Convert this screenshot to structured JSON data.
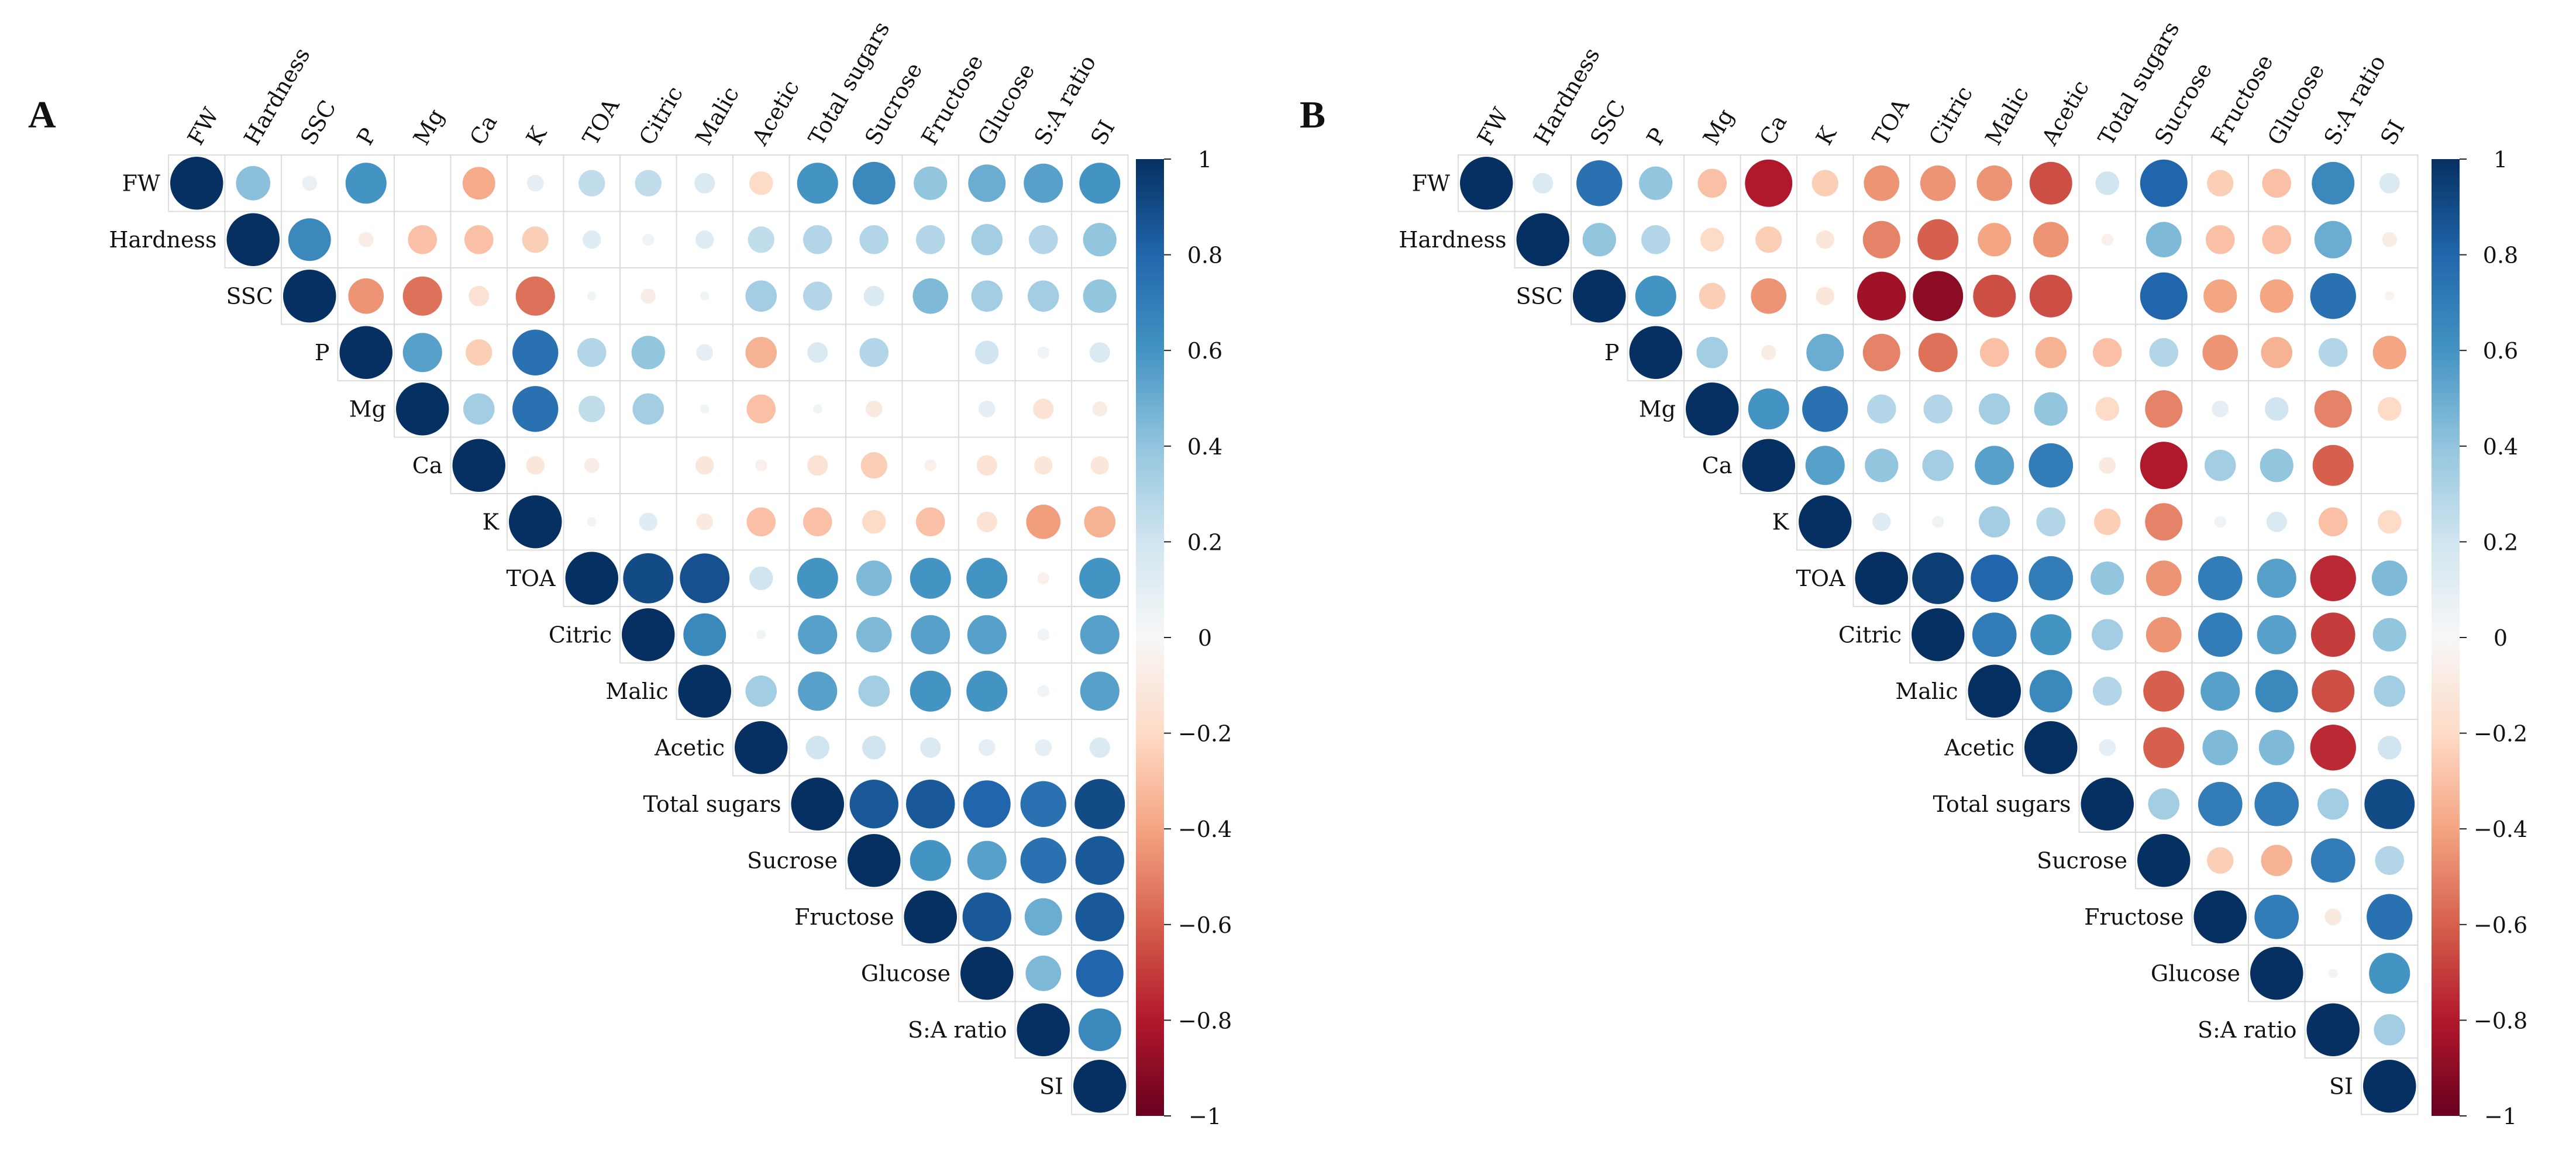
{
  "chart_data": [
    {
      "type": "heatmap",
      "subtype": "correlation-upper-triangle",
      "panel_label": "A",
      "variables": [
        "FW",
        "Hardness",
        "SSC",
        "P",
        "Mg",
        "Ca",
        "K",
        "TOA",
        "Citric",
        "Malic",
        "Acetic",
        "Total sugars",
        "Sucrose",
        "Fructose",
        "Glucose",
        "S:A ratio",
        "SI"
      ],
      "matrix": [
        [
          1,
          0.42,
          0.08,
          0.6,
          0,
          -0.38,
          0.1,
          0.25,
          0.25,
          0.15,
          -0.2,
          0.6,
          0.65,
          0.4,
          0.5,
          0.55,
          0.6
        ],
        [
          null,
          1,
          0.65,
          -0.08,
          -0.3,
          -0.3,
          -0.25,
          0.12,
          0.05,
          0.12,
          0.25,
          0.3,
          0.3,
          0.3,
          0.35,
          0.3,
          0.4
        ],
        [
          null,
          null,
          1,
          -0.45,
          -0.55,
          -0.15,
          -0.55,
          0.03,
          -0.08,
          0.03,
          0.35,
          0.3,
          0.15,
          0.45,
          0.35,
          0.35,
          0.4
        ],
        [
          null,
          null,
          null,
          1,
          0.55,
          -0.25,
          0.75,
          0.3,
          0.4,
          0.1,
          -0.35,
          0.15,
          0.3,
          0,
          0.2,
          0.05,
          0.15
        ],
        [
          null,
          null,
          null,
          null,
          1,
          0.35,
          0.75,
          0.25,
          0.35,
          0.03,
          -0.3,
          0.03,
          -0.1,
          0,
          0.1,
          -0.15,
          -0.08
        ],
        [
          null,
          null,
          null,
          null,
          null,
          1,
          -0.12,
          -0.08,
          0,
          -0.12,
          -0.05,
          -0.15,
          -0.25,
          -0.05,
          -0.15,
          -0.12,
          -0.12
        ],
        [
          null,
          null,
          null,
          null,
          null,
          null,
          1,
          0.03,
          0.12,
          -0.1,
          -0.3,
          -0.3,
          -0.2,
          -0.3,
          -0.15,
          -0.42,
          -0.35
        ],
        [
          null,
          null,
          null,
          null,
          null,
          null,
          null,
          1,
          0.9,
          0.88,
          0.2,
          0.6,
          0.45,
          0.6,
          0.6,
          -0.05,
          0.6
        ],
        [
          null,
          null,
          null,
          null,
          null,
          null,
          null,
          null,
          1,
          0.65,
          0.03,
          0.55,
          0.45,
          0.55,
          0.55,
          0.05,
          0.55
        ],
        [
          null,
          null,
          null,
          null,
          null,
          null,
          null,
          null,
          null,
          1,
          0.35,
          0.55,
          0.35,
          0.6,
          0.6,
          0.05,
          0.55
        ],
        [
          null,
          null,
          null,
          null,
          null,
          null,
          null,
          null,
          null,
          null,
          1,
          0.2,
          0.2,
          0.15,
          0.1,
          0.1,
          0.15
        ],
        [
          null,
          null,
          null,
          null,
          null,
          null,
          null,
          null,
          null,
          null,
          null,
          1,
          0.85,
          0.85,
          0.8,
          0.75,
          0.9
        ],
        [
          null,
          null,
          null,
          null,
          null,
          null,
          null,
          null,
          null,
          null,
          null,
          null,
          1,
          0.6,
          0.55,
          0.75,
          0.85
        ],
        [
          null,
          null,
          null,
          null,
          null,
          null,
          null,
          null,
          null,
          null,
          null,
          null,
          null,
          1,
          0.85,
          0.5,
          0.85
        ],
        [
          null,
          null,
          null,
          null,
          null,
          null,
          null,
          null,
          null,
          null,
          null,
          null,
          null,
          null,
          1,
          0.45,
          0.8
        ],
        [
          null,
          null,
          null,
          null,
          null,
          null,
          null,
          null,
          null,
          null,
          null,
          null,
          null,
          null,
          null,
          1,
          0.65
        ],
        [
          null,
          null,
          null,
          null,
          null,
          null,
          null,
          null,
          null,
          null,
          null,
          null,
          null,
          null,
          null,
          null,
          1
        ]
      ],
      "colorbar": {
        "ticks": [
          "1",
          "0.8",
          "0.6",
          "0.4",
          "0.2",
          "0",
          "−0.2",
          "−0.4",
          "−0.6",
          "−0.8",
          "−1"
        ],
        "range": [
          -1,
          1
        ]
      }
    },
    {
      "type": "heatmap",
      "subtype": "correlation-upper-triangle",
      "panel_label": "B",
      "variables": [
        "FW",
        "Hardness",
        "SSC",
        "P",
        "Mg",
        "Ca",
        "K",
        "TOA",
        "Citric",
        "Malic",
        "Acetic",
        "Total sugars",
        "Sucrose",
        "Fructose",
        "Glucose",
        "S:A ratio",
        "SI"
      ],
      "matrix": [
        [
          1,
          0.15,
          0.75,
          0.4,
          -0.3,
          -0.8,
          -0.25,
          -0.45,
          -0.45,
          -0.45,
          -0.65,
          0.2,
          0.8,
          -0.25,
          -0.3,
          0.65,
          0.15
        ],
        [
          null,
          1,
          0.4,
          0.3,
          -0.2,
          -0.25,
          -0.12,
          -0.5,
          -0.6,
          -0.4,
          -0.45,
          -0.05,
          0.45,
          -0.3,
          -0.3,
          0.5,
          -0.08
        ],
        [
          null,
          null,
          1,
          0.6,
          -0.25,
          -0.45,
          -0.12,
          -0.85,
          -0.9,
          -0.65,
          -0.65,
          0,
          0.8,
          -0.4,
          -0.4,
          0.75,
          -0.03
        ],
        [
          null,
          null,
          null,
          1,
          0.35,
          -0.08,
          0.5,
          -0.5,
          -0.55,
          -0.3,
          -0.35,
          -0.3,
          0.3,
          -0.45,
          -0.35,
          0.3,
          -0.4
        ],
        [
          null,
          null,
          null,
          null,
          1,
          0.6,
          0.75,
          0.3,
          0.3,
          0.35,
          0.4,
          -0.2,
          -0.5,
          0.1,
          0.2,
          -0.5,
          -0.2
        ],
        [
          null,
          null,
          null,
          null,
          null,
          1,
          0.55,
          0.4,
          0.35,
          0.55,
          0.7,
          -0.1,
          -0.8,
          0.35,
          0.4,
          -0.6,
          0
        ],
        [
          null,
          null,
          null,
          null,
          null,
          null,
          1,
          0.12,
          0.05,
          0.35,
          0.3,
          -0.25,
          -0.5,
          0.05,
          0.15,
          -0.3,
          -0.2
        ],
        [
          null,
          null,
          null,
          null,
          null,
          null,
          null,
          1,
          0.95,
          0.8,
          0.7,
          0.4,
          -0.45,
          0.7,
          0.55,
          -0.75,
          0.45
        ],
        [
          null,
          null,
          null,
          null,
          null,
          null,
          null,
          null,
          1,
          0.7,
          0.6,
          0.35,
          -0.45,
          0.7,
          0.55,
          -0.7,
          0.4
        ],
        [
          null,
          null,
          null,
          null,
          null,
          null,
          null,
          null,
          null,
          1,
          0.65,
          0.3,
          -0.6,
          0.55,
          0.65,
          -0.65,
          0.35
        ],
        [
          null,
          null,
          null,
          null,
          null,
          null,
          null,
          null,
          null,
          null,
          1,
          0.1,
          -0.6,
          0.45,
          0.45,
          -0.75,
          0.2
        ],
        [
          null,
          null,
          null,
          null,
          null,
          null,
          null,
          null,
          null,
          null,
          null,
          1,
          0.35,
          0.7,
          0.7,
          0.35,
          0.9
        ],
        [
          null,
          null,
          null,
          null,
          null,
          null,
          null,
          null,
          null,
          null,
          null,
          null,
          1,
          -0.25,
          -0.35,
          0.7,
          0.3
        ],
        [
          null,
          null,
          null,
          null,
          null,
          null,
          null,
          null,
          null,
          null,
          null,
          null,
          null,
          1,
          0.7,
          -0.1,
          0.75
        ],
        [
          null,
          null,
          null,
          null,
          null,
          null,
          null,
          null,
          null,
          null,
          null,
          null,
          null,
          null,
          1,
          0.03,
          0.6
        ],
        [
          null,
          null,
          null,
          null,
          null,
          null,
          null,
          null,
          null,
          null,
          null,
          null,
          null,
          null,
          null,
          1,
          0.35
        ],
        [
          null,
          null,
          null,
          null,
          null,
          null,
          null,
          null,
          null,
          null,
          null,
          null,
          null,
          null,
          null,
          null,
          1
        ]
      ],
      "colorbar": {
        "ticks": [
          "1",
          "0.8",
          "0.6",
          "0.4",
          "0.2",
          "0",
          "−0.2",
          "−0.4",
          "−0.6",
          "−0.8",
          "−1"
        ],
        "range": [
          -1,
          1
        ]
      }
    }
  ]
}
